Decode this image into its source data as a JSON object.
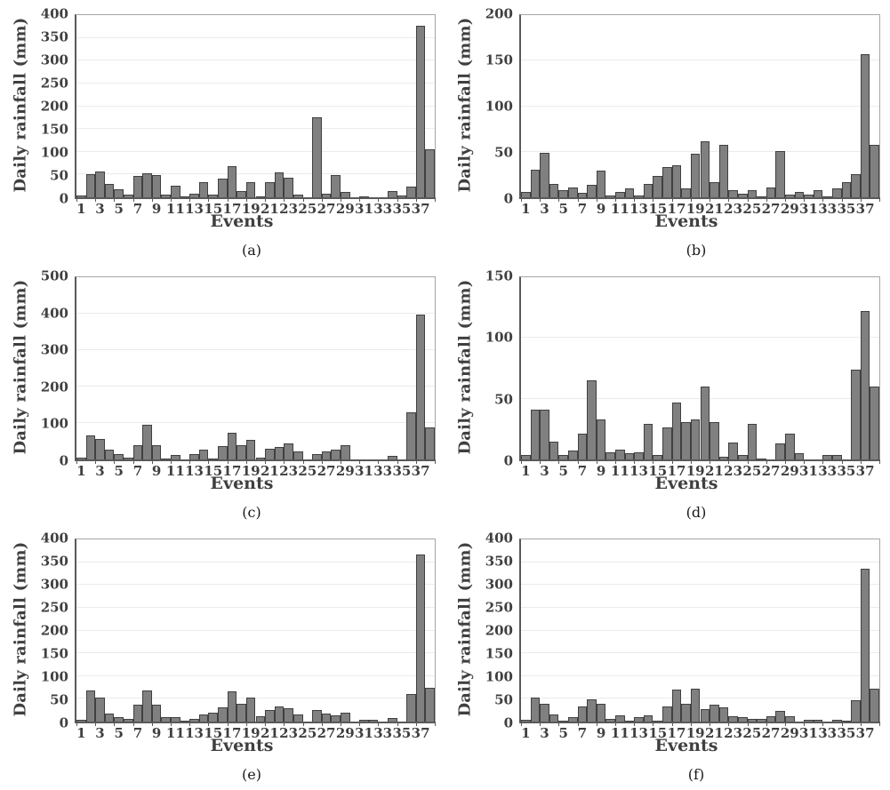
{
  "shared": {
    "y_axis_label": "Daily rainfall (mm)",
    "x_axis_label": "Events",
    "x_tick_labels": [
      "1",
      "3",
      "5",
      "7",
      "9",
      "11",
      "13",
      "15",
      "17",
      "19",
      "21",
      "23",
      "25",
      "27",
      "29",
      "31",
      "33",
      "35",
      "37"
    ],
    "n_events": 38,
    "bar_fill_color": "#808080",
    "bar_border_color": "#404040",
    "gridline_color": "#ebebeb",
    "axis_text_color": "#3f3f3f"
  },
  "chart_data": [
    {
      "type": "bar",
      "label": "(a)",
      "title": "",
      "xlabel": "Events",
      "ylabel": "Daily rainfall (mm)",
      "ylim": [
        0,
        400
      ],
      "ytick_step": 50,
      "x": [
        1,
        2,
        3,
        4,
        5,
        6,
        7,
        8,
        9,
        10,
        11,
        12,
        13,
        14,
        15,
        16,
        17,
        18,
        19,
        20,
        21,
        22,
        23,
        24,
        25,
        26,
        27,
        28,
        29,
        30,
        31,
        32,
        33,
        34,
        35,
        36,
        37,
        38
      ],
      "values": [
        3,
        50,
        57,
        30,
        17,
        6,
        46,
        52,
        48,
        5,
        25,
        2,
        8,
        34,
        5,
        41,
        68,
        14,
        34,
        2,
        33,
        55,
        43,
        6,
        0,
        175,
        8,
        49,
        12,
        0,
        2,
        0,
        0,
        13,
        3,
        24,
        377,
        105
      ]
    },
    {
      "type": "bar",
      "label": "(b)",
      "title": "",
      "xlabel": "Events",
      "ylabel": "Daily rainfall (mm)",
      "ylim": [
        0,
        200
      ],
      "ytick_step": 50,
      "x": [
        1,
        2,
        3,
        4,
        5,
        6,
        7,
        8,
        9,
        10,
        11,
        12,
        13,
        14,
        15,
        16,
        17,
        18,
        19,
        20,
        21,
        22,
        23,
        24,
        25,
        26,
        27,
        28,
        29,
        30,
        31,
        32,
        33,
        34,
        35,
        36,
        37,
        38
      ],
      "values": [
        6,
        30,
        49,
        15,
        8,
        11,
        5,
        14,
        29,
        2,
        6,
        10,
        2,
        15,
        23,
        33,
        35,
        10,
        48,
        61,
        17,
        58,
        8,
        4,
        8,
        1,
        11,
        51,
        3,
        6,
        3,
        8,
        1,
        10,
        17,
        25,
        157,
        58
      ]
    },
    {
      "type": "bar",
      "label": "(c)",
      "title": "",
      "xlabel": "Events",
      "ylabel": "Daily rainfall (mm)",
      "ylim": [
        0,
        500
      ],
      "ytick_step": 100,
      "x": [
        1,
        2,
        3,
        4,
        5,
        6,
        7,
        8,
        9,
        10,
        11,
        12,
        13,
        14,
        15,
        16,
        17,
        18,
        19,
        20,
        21,
        22,
        23,
        24,
        25,
        26,
        27,
        28,
        29,
        30,
        31,
        32,
        33,
        34,
        35,
        36,
        37,
        38
      ],
      "values": [
        4,
        65,
        55,
        27,
        14,
        6,
        38,
        95,
        40,
        1,
        12,
        0,
        15,
        27,
        3,
        37,
        74,
        38,
        54,
        5,
        30,
        33,
        43,
        22,
        0,
        15,
        22,
        26,
        40,
        0,
        0,
        0,
        0,
        9,
        0,
        130,
        397,
        88
      ]
    },
    {
      "type": "bar",
      "label": "(d)",
      "title": "",
      "xlabel": "Events",
      "ylabel": "Daily rainfall (mm)",
      "ylim": [
        0,
        150
      ],
      "ytick_step": 50,
      "x": [
        1,
        2,
        3,
        4,
        5,
        6,
        7,
        8,
        9,
        10,
        11,
        12,
        13,
        14,
        15,
        16,
        17,
        18,
        19,
        20,
        21,
        22,
        23,
        24,
        25,
        26,
        27,
        28,
        29,
        30,
        31,
        32,
        33,
        34,
        35,
        36,
        37,
        38
      ],
      "values": [
        4,
        41,
        41,
        15,
        4,
        7,
        21,
        65,
        33,
        6,
        8,
        5,
        6,
        29,
        4,
        26,
        47,
        31,
        33,
        60,
        31,
        2,
        14,
        4,
        29,
        1,
        0,
        13,
        21,
        5,
        0,
        0,
        4,
        4,
        0,
        74,
        122,
        60
      ]
    },
    {
      "type": "bar",
      "label": "(e)",
      "title": "",
      "xlabel": "Events",
      "ylabel": "Daily rainfall (mm)",
      "ylim": [
        0,
        400
      ],
      "ytick_step": 50,
      "x": [
        1,
        2,
        3,
        4,
        5,
        6,
        7,
        8,
        9,
        10,
        11,
        12,
        13,
        14,
        15,
        16,
        17,
        18,
        19,
        20,
        21,
        22,
        23,
        24,
        25,
        26,
        27,
        28,
        29,
        30,
        31,
        32,
        33,
        34,
        35,
        36,
        37,
        38
      ],
      "values": [
        3,
        68,
        53,
        17,
        9,
        6,
        38,
        68,
        38,
        9,
        9,
        1,
        5,
        16,
        20,
        32,
        66,
        40,
        53,
        11,
        26,
        33,
        30,
        15,
        0,
        26,
        17,
        14,
        19,
        0,
        3,
        3,
        0,
        8,
        0,
        61,
        367,
        75
      ]
    },
    {
      "type": "bar",
      "label": "(f)",
      "title": "",
      "xlabel": "Events",
      "ylabel": "Daily rainfall (mm)",
      "ylim": [
        0,
        400
      ],
      "ytick_step": 50,
      "x": [
        1,
        2,
        3,
        4,
        5,
        6,
        7,
        8,
        9,
        10,
        11,
        12,
        13,
        14,
        15,
        16,
        17,
        18,
        19,
        20,
        21,
        22,
        23,
        24,
        25,
        26,
        27,
        28,
        29,
        30,
        31,
        32,
        33,
        34,
        35,
        36,
        37,
        38
      ],
      "values": [
        3,
        52,
        40,
        16,
        1,
        9,
        33,
        48,
        40,
        5,
        14,
        1,
        10,
        14,
        2,
        33,
        70,
        40,
        73,
        27,
        38,
        31,
        11,
        10,
        5,
        5,
        12,
        23,
        12,
        0,
        3,
        3,
        0,
        4,
        2,
        47,
        335,
        72
      ]
    }
  ]
}
